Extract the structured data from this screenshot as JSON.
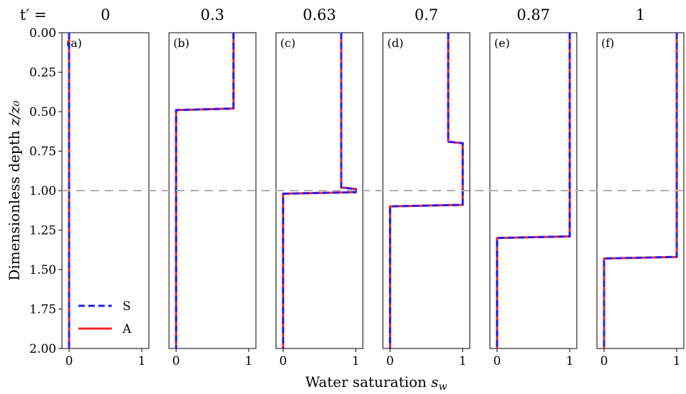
{
  "header": {
    "prefix_label": "t′ ="
  },
  "legend": {
    "s_label": "S",
    "a_label": "A"
  },
  "colors": {
    "S": "#1f1fff",
    "A": "#ff2020",
    "reference_line": "#b0b0b0"
  },
  "chart_data": {
    "type": "line",
    "xlabel": "Water saturation s_w",
    "ylabel": "Dimensionless depth z/z₀",
    "xlim": [
      0,
      1
    ],
    "ylim": [
      2.0,
      0.0
    ],
    "xticks": [
      "0",
      "1"
    ],
    "yticks": [
      "0.00",
      "0.25",
      "0.50",
      "0.75",
      "1.00",
      "1.25",
      "1.50",
      "1.75",
      "2.00"
    ],
    "reference_line": {
      "y": 1.0,
      "style": "dashed"
    },
    "legend_position": "bottom-left (panel a)",
    "panels": [
      {
        "id": "(a)",
        "t": "0",
        "series": [
          {
            "name": "S",
            "style": "dashed",
            "points": [
              [
                0.0,
                0.0
              ],
              [
                0.0,
                2.0
              ]
            ]
          },
          {
            "name": "A",
            "style": "solid",
            "points": [
              [
                0.0,
                0.0
              ],
              [
                0.0,
                2.0
              ]
            ]
          }
        ]
      },
      {
        "id": "(b)",
        "t": "0.3",
        "series": [
          {
            "name": "S",
            "style": "dashed",
            "points": [
              [
                0.79,
                0.0
              ],
              [
                0.79,
                0.48
              ],
              [
                0.0,
                0.49
              ],
              [
                0.0,
                2.0
              ]
            ]
          },
          {
            "name": "A",
            "style": "solid",
            "points": [
              [
                0.79,
                0.0
              ],
              [
                0.79,
                0.48
              ],
              [
                0.0,
                0.49
              ],
              [
                0.0,
                2.0
              ]
            ]
          }
        ]
      },
      {
        "id": "(c)",
        "t": "0.63",
        "series": [
          {
            "name": "S",
            "style": "dashed",
            "points": [
              [
                0.8,
                0.0
              ],
              [
                0.8,
                0.98
              ],
              [
                1.0,
                0.99
              ],
              [
                1.0,
                1.01
              ],
              [
                0.0,
                1.02
              ],
              [
                0.0,
                2.0
              ]
            ]
          },
          {
            "name": "A",
            "style": "solid",
            "points": [
              [
                0.8,
                0.0
              ],
              [
                0.8,
                0.98
              ],
              [
                1.0,
                0.99
              ],
              [
                1.0,
                1.01
              ],
              [
                0.0,
                1.02
              ],
              [
                0.0,
                2.0
              ]
            ]
          }
        ]
      },
      {
        "id": "(d)",
        "t": "0.7",
        "series": [
          {
            "name": "S",
            "style": "dashed",
            "points": [
              [
                0.8,
                0.0
              ],
              [
                0.8,
                0.69
              ],
              [
                1.0,
                0.7
              ],
              [
                1.0,
                1.09
              ],
              [
                0.0,
                1.1
              ],
              [
                0.0,
                2.0
              ]
            ]
          },
          {
            "name": "A",
            "style": "solid",
            "points": [
              [
                0.8,
                0.0
              ],
              [
                0.8,
                0.69
              ],
              [
                1.0,
                0.7
              ],
              [
                1.0,
                1.09
              ],
              [
                0.0,
                1.1
              ],
              [
                0.0,
                2.0
              ]
            ]
          }
        ]
      },
      {
        "id": "(e)",
        "t": "0.87",
        "series": [
          {
            "name": "S",
            "style": "dashed",
            "points": [
              [
                1.0,
                0.0
              ],
              [
                1.0,
                1.29
              ],
              [
                0.0,
                1.3
              ],
              [
                0.0,
                2.0
              ]
            ]
          },
          {
            "name": "A",
            "style": "solid",
            "points": [
              [
                1.0,
                0.0
              ],
              [
                1.0,
                1.29
              ],
              [
                0.0,
                1.3
              ],
              [
                0.0,
                2.0
              ]
            ]
          }
        ]
      },
      {
        "id": "(f)",
        "t": "1",
        "series": [
          {
            "name": "S",
            "style": "dashed",
            "points": [
              [
                1.0,
                0.0
              ],
              [
                1.0,
                1.42
              ],
              [
                0.0,
                1.43
              ],
              [
                0.0,
                2.0
              ]
            ]
          },
          {
            "name": "A",
            "style": "solid",
            "points": [
              [
                1.0,
                0.0
              ],
              [
                1.0,
                1.42
              ],
              [
                0.0,
                1.43
              ],
              [
                0.0,
                2.0
              ]
            ]
          }
        ]
      }
    ]
  }
}
